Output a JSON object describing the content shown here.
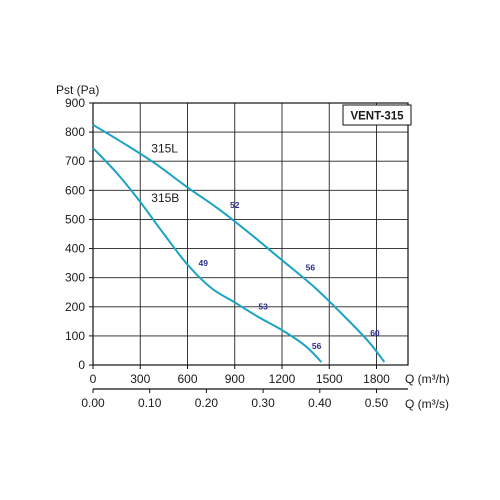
{
  "colors": {
    "curve": "#1aa3c4",
    "grid": "#222222",
    "axis": "#111111",
    "noise_label": "#2a2f8f"
  },
  "chart_data": {
    "type": "line",
    "title": "VENT-315",
    "ylabel": "Pst (Pa)",
    "xlabel": "Q (m³/h)",
    "x2label": "Q (m³/s)",
    "ylim": [
      0,
      900
    ],
    "xlim": [
      0,
      2000
    ],
    "x2lim": [
      0,
      0.5556
    ],
    "y_ticks": [
      "0",
      "100",
      "200",
      "300",
      "400",
      "500",
      "600",
      "700",
      "800",
      "900"
    ],
    "x_ticks": [
      "0",
      "300",
      "600",
      "900",
      "1200",
      "1500",
      "1800"
    ],
    "x_tick_values": [
      0,
      300,
      600,
      900,
      1200,
      1500,
      1800
    ],
    "x2_ticks": [
      "0.00",
      "0.10",
      "0.20",
      "0.30",
      "0.40",
      "0.50"
    ],
    "x2_tick_values": [
      0,
      0.1,
      0.2,
      0.3,
      0.4,
      0.5
    ],
    "grid": true,
    "series": [
      {
        "name": "315L",
        "points": [
          [
            0,
            825
          ],
          [
            200,
            760
          ],
          [
            400,
            690
          ],
          [
            600,
            610
          ],
          [
            800,
            535
          ],
          [
            1000,
            450
          ],
          [
            1200,
            360
          ],
          [
            1400,
            270
          ],
          [
            1600,
            165
          ],
          [
            1750,
            80
          ],
          [
            1850,
            10
          ]
        ]
      },
      {
        "name": "315B",
        "points": [
          [
            0,
            745
          ],
          [
            150,
            660
          ],
          [
            300,
            560
          ],
          [
            450,
            450
          ],
          [
            600,
            345
          ],
          [
            750,
            265
          ],
          [
            900,
            215
          ],
          [
            1050,
            165
          ],
          [
            1200,
            120
          ],
          [
            1350,
            65
          ],
          [
            1450,
            10
          ]
        ]
      }
    ],
    "series_labels": [
      {
        "text": "315L",
        "x": 370,
        "y": 730
      },
      {
        "text": "315B",
        "x": 370,
        "y": 560
      }
    ],
    "annotations": [
      {
        "text": "52",
        "x": 900,
        "y": 540
      },
      {
        "text": "56",
        "x": 1380,
        "y": 325
      },
      {
        "text": "60",
        "x": 1790,
        "y": 100
      },
      {
        "text": "49",
        "x": 700,
        "y": 340
      },
      {
        "text": "53",
        "x": 1080,
        "y": 190
      },
      {
        "text": "56",
        "x": 1420,
        "y": 55
      }
    ]
  }
}
